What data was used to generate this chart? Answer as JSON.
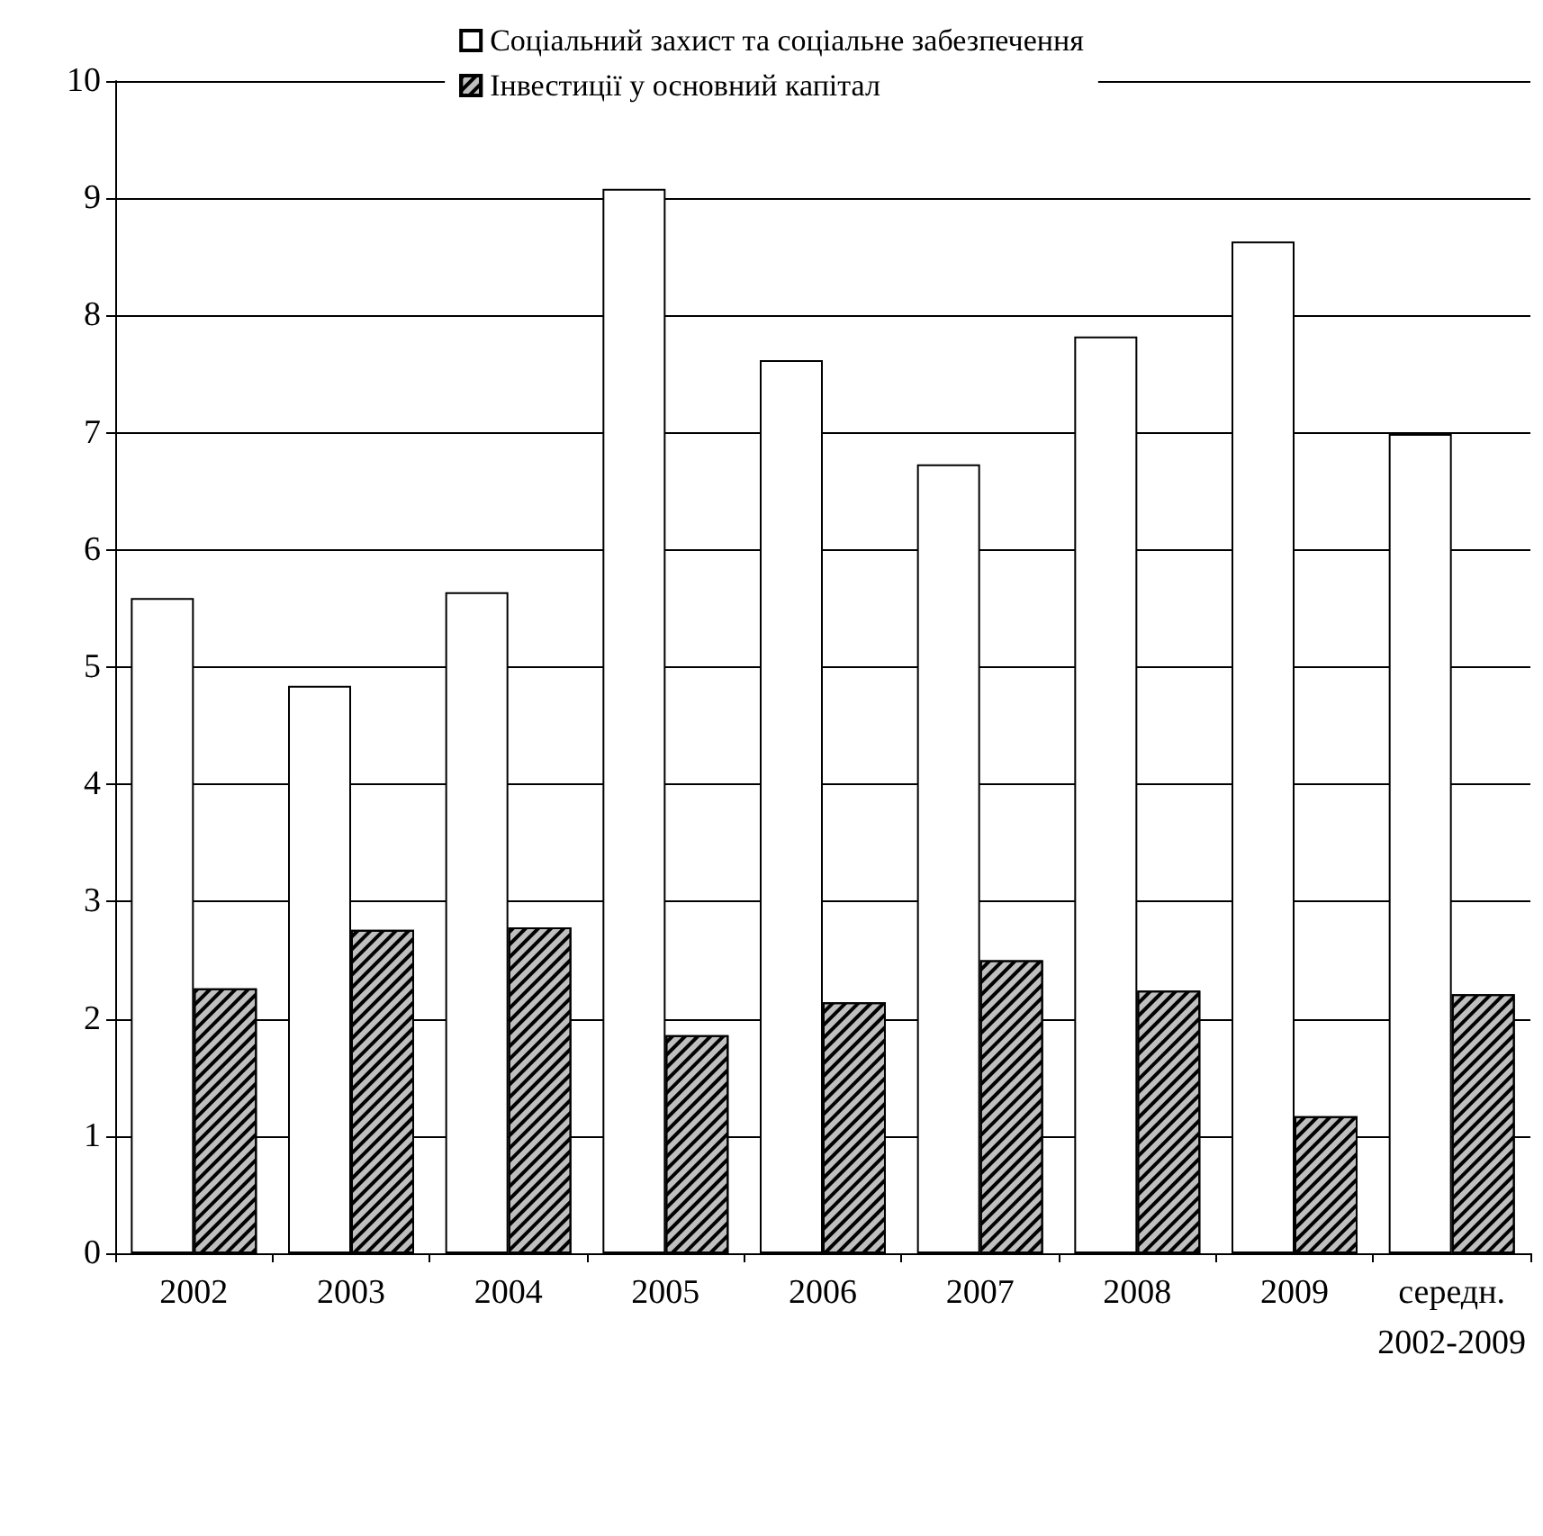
{
  "chart_data": {
    "type": "bar",
    "categories": [
      "2002",
      "2003",
      "2004",
      "2005",
      "2006",
      "2007",
      "2008",
      "2009",
      "середн. 2002-2009"
    ],
    "series": [
      {
        "name": "Соціальний захист та соціальне забезпечення",
        "color": "#ffffff",
        "values": [
          5.59,
          4.84,
          5.64,
          9.08,
          7.62,
          6.73,
          7.82,
          8.63,
          6.99
        ]
      },
      {
        "name": "Інвестиції у основний капітал",
        "color": "#bfbfbf",
        "values": [
          2.26,
          2.76,
          2.78,
          1.86,
          2.14,
          2.5,
          2.24,
          1.17,
          2.21
        ]
      }
    ],
    "ylim": [
      0,
      10
    ],
    "yticks": [
      0,
      1,
      2,
      3,
      4,
      5,
      6,
      7,
      8,
      9,
      10
    ],
    "grid": "y",
    "legend": "top"
  }
}
